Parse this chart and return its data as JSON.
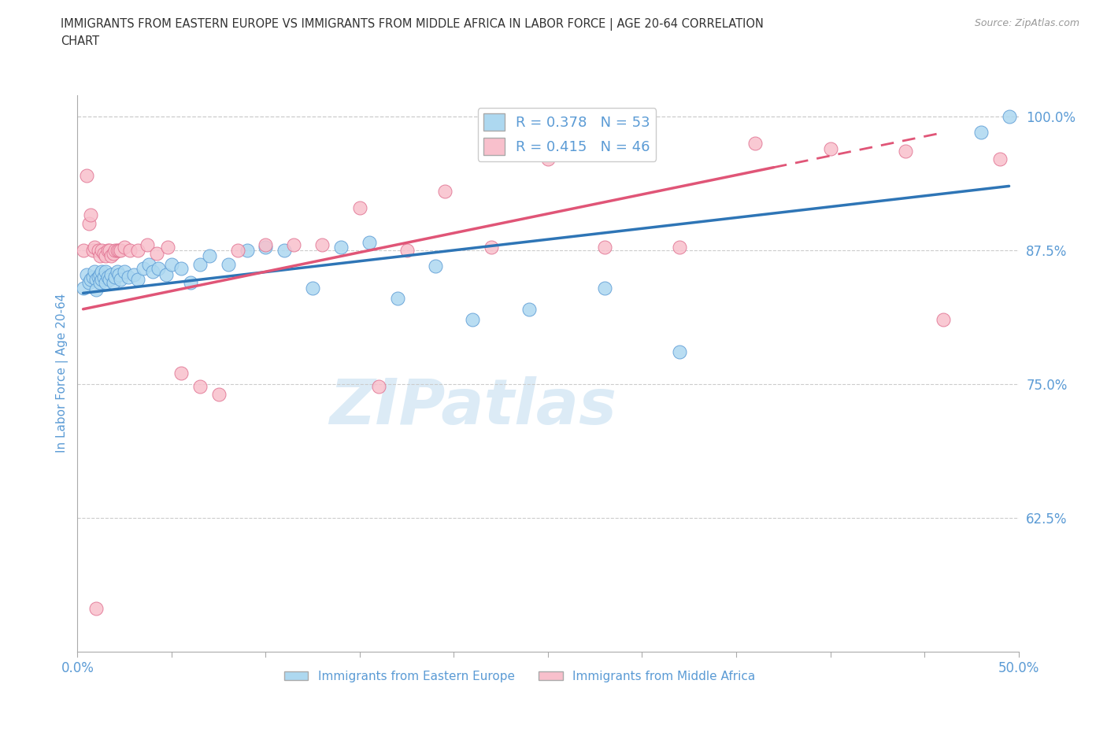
{
  "title_line1": "IMMIGRANTS FROM EASTERN EUROPE VS IMMIGRANTS FROM MIDDLE AFRICA IN LABOR FORCE | AGE 20-64 CORRELATION",
  "title_line2": "CHART",
  "source": "Source: ZipAtlas.com",
  "ylabel": "In Labor Force | Age 20-64",
  "xlim": [
    0.0,
    0.5
  ],
  "ylim": [
    0.5,
    1.02
  ],
  "xticks": [
    0.0,
    0.05,
    0.1,
    0.15,
    0.2,
    0.25,
    0.3,
    0.35,
    0.4,
    0.45,
    0.5
  ],
  "ytick_vals_right": [
    1.0,
    0.875,
    0.75,
    0.625
  ],
  "ytick_labels_right": [
    "100.0%",
    "87.5%",
    "75.0%",
    "62.5%"
  ],
  "blue_color": "#ADD8F0",
  "blue_edge_color": "#5B9BD5",
  "blue_line_color": "#2E75B6",
  "pink_color": "#F8C0CC",
  "pink_edge_color": "#E07090",
  "pink_line_color": "#E05577",
  "axis_label_color": "#5B9BD5",
  "title_color": "#333333",
  "source_color": "#999999",
  "grid_color": "#CCCCCC",
  "R_blue": 0.378,
  "N_blue": 53,
  "R_pink": 0.415,
  "N_pink": 46,
  "blue_scatter_x": [
    0.003,
    0.005,
    0.006,
    0.007,
    0.008,
    0.009,
    0.01,
    0.01,
    0.011,
    0.012,
    0.012,
    0.013,
    0.013,
    0.014,
    0.015,
    0.015,
    0.016,
    0.017,
    0.018,
    0.019,
    0.02,
    0.021,
    0.022,
    0.023,
    0.025,
    0.027,
    0.03,
    0.032,
    0.035,
    0.038,
    0.04,
    0.043,
    0.047,
    0.05,
    0.055,
    0.06,
    0.065,
    0.07,
    0.08,
    0.09,
    0.1,
    0.11,
    0.125,
    0.14,
    0.155,
    0.17,
    0.19,
    0.21,
    0.24,
    0.28,
    0.32,
    0.48,
    0.495
  ],
  "blue_scatter_y": [
    0.84,
    0.852,
    0.845,
    0.848,
    0.85,
    0.855,
    0.848,
    0.838,
    0.85,
    0.845,
    0.852,
    0.848,
    0.855,
    0.85,
    0.845,
    0.855,
    0.85,
    0.848,
    0.852,
    0.845,
    0.85,
    0.855,
    0.852,
    0.848,
    0.855,
    0.85,
    0.852,
    0.848,
    0.858,
    0.862,
    0.855,
    0.858,
    0.852,
    0.862,
    0.858,
    0.845,
    0.862,
    0.87,
    0.862,
    0.875,
    0.878,
    0.875,
    0.84,
    0.878,
    0.882,
    0.83,
    0.86,
    0.81,
    0.82,
    0.84,
    0.78,
    0.985,
    1.0
  ],
  "pink_scatter_x": [
    0.003,
    0.005,
    0.006,
    0.007,
    0.008,
    0.009,
    0.01,
    0.011,
    0.012,
    0.013,
    0.014,
    0.015,
    0.016,
    0.017,
    0.018,
    0.019,
    0.02,
    0.021,
    0.022,
    0.023,
    0.025,
    0.028,
    0.032,
    0.037,
    0.042,
    0.048,
    0.055,
    0.065,
    0.075,
    0.085,
    0.1,
    0.115,
    0.13,
    0.15,
    0.16,
    0.175,
    0.195,
    0.22,
    0.25,
    0.28,
    0.32,
    0.36,
    0.4,
    0.44,
    0.46,
    0.49
  ],
  "pink_scatter_y": [
    0.875,
    0.945,
    0.9,
    0.908,
    0.875,
    0.878,
    0.54,
    0.875,
    0.87,
    0.875,
    0.872,
    0.87,
    0.875,
    0.875,
    0.87,
    0.872,
    0.875,
    0.875,
    0.875,
    0.875,
    0.878,
    0.875,
    0.875,
    0.88,
    0.872,
    0.878,
    0.76,
    0.748,
    0.74,
    0.875,
    0.88,
    0.88,
    0.88,
    0.915,
    0.748,
    0.875,
    0.93,
    0.878,
    0.96,
    0.878,
    0.878,
    0.975,
    0.97,
    0.968,
    0.81,
    0.96
  ],
  "watermark_text": "ZIPatlas",
  "background_color": "#FFFFFF",
  "blue_line_x": [
    0.003,
    0.495
  ],
  "blue_line_y": [
    0.835,
    0.935
  ],
  "pink_line_x": [
    0.003,
    0.46
  ],
  "pink_line_y": [
    0.82,
    0.985
  ]
}
